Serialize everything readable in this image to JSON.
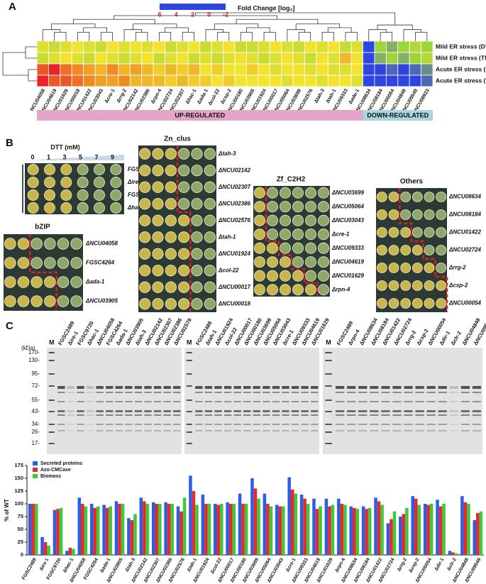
{
  "panels": [
    "A",
    "B",
    "C"
  ],
  "chart_data": [
    {
      "type": "heatmap",
      "title": "Fold Change [log₂]",
      "clim": [
        -2,
        6
      ],
      "colorbar_ticks": [
        6,
        4,
        2,
        0,
        -2
      ],
      "colormap": [
        "#2f45e0",
        "#9fd43a",
        "#f2e32e",
        "#ef8a25",
        "#e8232a"
      ],
      "groups": [
        "UP-REGULATED",
        "DOWN-REGULATED"
      ],
      "columns": [
        "NCU04058",
        "NCU04619",
        "NCU01629",
        "NCU00018",
        "NCU01422",
        "NCU03043",
        "Δcre-1",
        "Δrrg-2",
        "NCU02142",
        "NCU02386",
        "Δrpn-4",
        "NCU02724",
        "NCU02307",
        "Δhac-1",
        "Δada-1",
        "Δcol-22",
        "Δcsp-2",
        "NCU00180",
        "NCU03905",
        "NCU01924",
        "NCU00017",
        "NCU05064",
        "NCU03699",
        "NCU02576",
        "Δtah-3",
        "Δtah-1",
        "NCU09333",
        "Δade-1",
        "NCU08634",
        "NCU08184",
        "NCU00054",
        "NCU04848",
        "NCU09549",
        "NCU08923"
      ],
      "series": [
        {
          "name": "Mild ER stress (DTT)",
          "values": [
            1.5,
            1,
            1.5,
            2,
            1.5,
            1,
            2,
            1.5,
            2,
            1.5,
            2,
            1,
            1.5,
            2,
            1,
            1.5,
            2,
            1,
            1,
            1.5,
            2,
            1.5,
            1,
            2,
            1.5,
            2,
            1,
            1.5,
            -2,
            0,
            -0.5,
            0,
            0.5,
            0
          ]
        },
        {
          "name": "Mild ER stress (TM)",
          "values": [
            1,
            1.5,
            2,
            1.5,
            1,
            2,
            1.5,
            1,
            1.5,
            2,
            1,
            1.5,
            2,
            1,
            1.5,
            1,
            1.5,
            2,
            1.5,
            1,
            1.5,
            2,
            1.5,
            1,
            2,
            1.5,
            3,
            2,
            -2,
            -0.5,
            0,
            -0.5,
            0,
            0.5
          ]
        },
        {
          "name": "Acute ER stress (DTT)",
          "values": [
            5,
            6,
            4.5,
            4,
            3.5,
            3,
            4,
            3,
            3.5,
            3,
            2.5,
            3,
            2.5,
            3,
            2,
            2.5,
            2,
            2,
            2.5,
            2,
            1.5,
            2,
            2,
            1.5,
            2,
            1.5,
            1.5,
            2,
            -2,
            -2,
            -1.5,
            -2,
            -1.5,
            -1
          ]
        },
        {
          "name": "Acute ER stress (TM)",
          "values": [
            6,
            5,
            5,
            4.5,
            4,
            3.5,
            3.5,
            4,
            3,
            3,
            3,
            2.5,
            3,
            2.5,
            2.5,
            2,
            2.5,
            2,
            2,
            2,
            2,
            1.5,
            2,
            2,
            1.5,
            2,
            2,
            1.5,
            -2,
            -2,
            -2,
            -2,
            -2,
            -1.5
          ]
        }
      ]
    },
    {
      "type": "bar",
      "ylabel": "% of WT",
      "ylim": [
        0,
        175
      ],
      "yticks": [
        0,
        25,
        50,
        75,
        100,
        125,
        150,
        175
      ],
      "legend": "top-left",
      "categories": [
        "FGSC2489",
        "Δire-1",
        "FGSC9720",
        "Δhac-1",
        "ΔNCU04058",
        "FGSC4264",
        "Δada-1",
        "ΔNCU03905",
        "Δtah-3",
        "ΔNCU02142",
        "ΔNCU02307",
        "ΔNCU02386",
        "ΔNCU02576",
        "Δtah-1",
        "ΔNCU01924",
        "Δcol-22",
        "ΔNCU00017",
        "ΔNCU00180",
        "ΔNCU03699",
        "ΔNCU05064",
        "ΔNCU03043",
        "Δcre-1",
        "ΔNCU09333",
        "ΔNCU04619",
        "ΔNCU01629",
        "Δrpn-4",
        "ΔNCU08634",
        "ΔNCU08184",
        "ΔNCU01422",
        "ΔNCU02724",
        "Δrrg-2",
        "Δcsp-2",
        "ΔNCU00054",
        "Δdir-1",
        "Δclr-2",
        "ΔNCU04848",
        "ΔNCU09549"
      ],
      "series": [
        {
          "name": "Secreted proteins",
          "color": "#2b5ee8",
          "values": [
            100,
            35,
            88,
            8,
            112,
            100,
            98,
            105,
            72,
            112,
            103,
            103,
            95,
            155,
            118,
            100,
            103,
            120,
            150,
            120,
            98,
            152,
            118,
            110,
            110,
            110,
            95,
            95,
            112,
            62,
            75,
            115,
            100,
            108,
            8,
            115,
            68
          ]
        },
        {
          "name": "Azo-CMCase",
          "color": "#e8282a",
          "values": [
            100,
            25,
            90,
            14,
            100,
            92,
            92,
            100,
            68,
            105,
            100,
            100,
            85,
            125,
            100,
            98,
            100,
            100,
            130,
            100,
            95,
            128,
            110,
            90,
            95,
            100,
            92,
            90,
            105,
            70,
            80,
            110,
            98,
            95,
            5,
            103,
            82
          ]
        },
        {
          "name": "Biomass",
          "color": "#3ec83a",
          "values": [
            100,
            18,
            92,
            12,
            95,
            95,
            95,
            100,
            80,
            100,
            100,
            100,
            112,
            98,
            100,
            100,
            100,
            100,
            110,
            95,
            95,
            120,
            100,
            95,
            98,
            98,
            90,
            92,
            98,
            85,
            92,
            98,
            100,
            100,
            3,
            100,
            85
          ]
        }
      ]
    }
  ],
  "plates": {
    "dtt_label": "DTT (mM)",
    "concentrations": [
      "0",
      "1",
      "3",
      "5",
      "7",
      "9"
    ],
    "controls": [
      "FGSC2489",
      "Δire-1",
      "FGSC9720",
      "Δhac-1"
    ],
    "groups": [
      {
        "title": "bZIP",
        "strains": [
          "ΔNCU04058",
          "FGSC4264",
          "Δada-1",
          "ΔNCU03905"
        ]
      },
      {
        "title": "Zn_clus",
        "strains": [
          "Δtah-3",
          "ΔNCU02142",
          "ΔNCU02307",
          "ΔNCU02386",
          "ΔNCU02576",
          "Δtah-1",
          "ΔNCU01924",
          "Δcol-22",
          "ΔNCU00017",
          "ΔNCU00018"
        ]
      },
      {
        "title": "Zf_C2H2",
        "strains": [
          "ΔNCU03699",
          "ΔNCU05064",
          "ΔNCU03043",
          "Δcre-1",
          "ΔNCU09333",
          "ΔNCU04619",
          "ΔNCU01629",
          "Δrpn-4"
        ]
      },
      {
        "title": "Others",
        "strains": [
          "ΔNCU08634",
          "ΔNCU08184",
          "ΔNCU01422",
          "ΔNCU02724",
          "Δrrg-2",
          "Δcsp-2",
          "ΔNCU00054"
        ]
      }
    ]
  },
  "gels": {
    "unit": "(kDa)",
    "ladder": "M",
    "markers": [
      "170-",
      "130-",
      "95-",
      "72-",
      "55-",
      "43-",
      "34-",
      "26-",
      "17-"
    ],
    "lanes": [
      [
        "FGSC2489",
        "Δire-1",
        "FGSC9720",
        "Δhac-1",
        "ΔNCU04058",
        "FGSC4264",
        "Δada-1",
        "ΔNCU03905",
        "Δtah-3",
        "ΔNCU02142",
        "ΔNCU02307",
        "ΔNCU02386",
        "ΔNCU02576"
      ],
      [
        "FGSC2489",
        "Δtah-1",
        "ΔNCU01924",
        "Δcol-22",
        "ΔNCU00017",
        "ΔNCU00180",
        "ΔNCU03699",
        "ΔNCU05064",
        "ΔNCU03043",
        "Δcre-1",
        "ΔNCU09333",
        "ΔNCU04619",
        "ΔNCU01629"
      ],
      [
        "FGSC2489",
        "Δrpn-4",
        "ΔNCU08634",
        "ΔNCU08184",
        "ΔNCU01422",
        "ΔNCU02724",
        "Δrrg-2",
        "Δcsp-2",
        "ΔNCU00054",
        "Δdir-1",
        "Δclr-2",
        "ΔNCU04848",
        "ΔNCU09549"
      ]
    ]
  }
}
